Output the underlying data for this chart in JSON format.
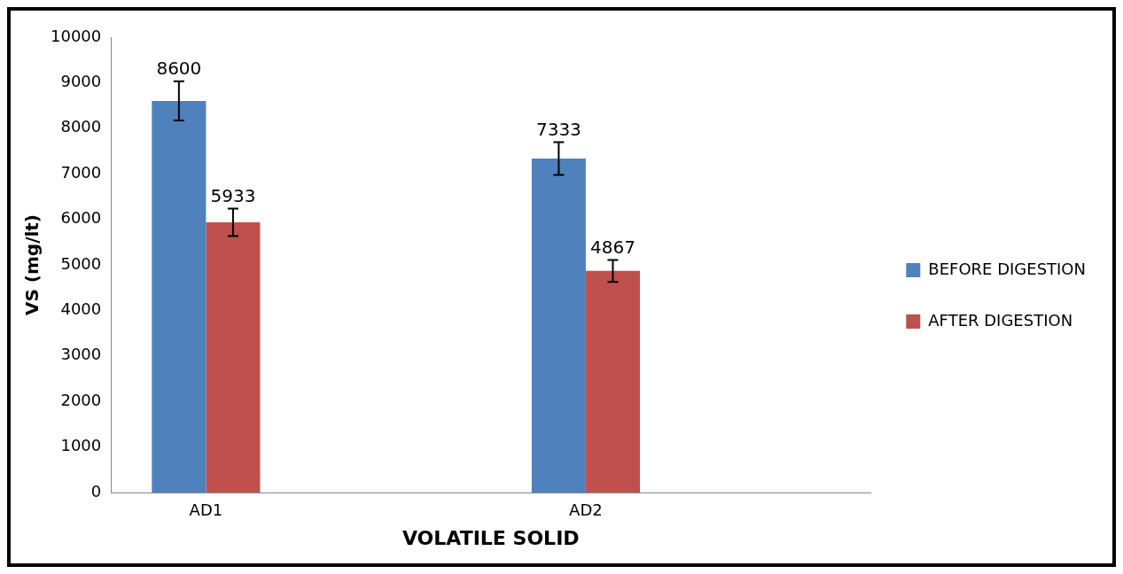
{
  "chart_data": {
    "type": "bar",
    "xlabel": "VOLATILE SOLID",
    "ylabel": "VS (mg/lt)",
    "categories": [
      "AD1",
      null,
      "AD2",
      null
    ],
    "series": [
      {
        "name": "BEFORE DIGESTION",
        "color": "#4f81bd",
        "values": [
          8600,
          null,
          7333,
          null
        ],
        "errors": [
          430,
          null,
          360,
          null
        ]
      },
      {
        "name": "AFTER DIGESTION",
        "color": "#c0504d",
        "values": [
          5933,
          null,
          4867,
          null
        ],
        "errors": [
          300,
          null,
          240,
          null
        ]
      }
    ],
    "ylim": [
      0,
      10000
    ],
    "yticks": [
      0,
      1000,
      2000,
      3000,
      4000,
      5000,
      6000,
      7000,
      8000,
      9000,
      10000
    ],
    "grid": false,
    "legend": "right",
    "data_labels": true
  }
}
